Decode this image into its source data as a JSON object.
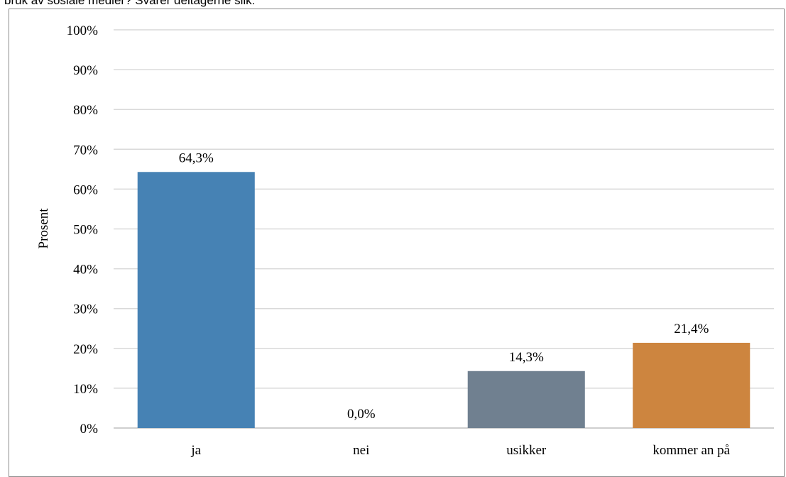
{
  "caption": "bruk av sosiale medier? Svarer deltagerne slik:",
  "chart_data": {
    "type": "bar",
    "categories": [
      "ja",
      "nei",
      "usikker",
      "kommer an på"
    ],
    "values": [
      64.3,
      0.0,
      14.3,
      21.4
    ],
    "value_labels": [
      "64,3%",
      "0,0%",
      "14,3%",
      "21,4%"
    ],
    "colors": [
      "#4682B4",
      "#4682B4",
      "#708090",
      "#CD853F"
    ],
    "ylabel": "Prosent",
    "ylim": [
      0,
      100
    ],
    "yticks": [
      "0%",
      "10%",
      "20%",
      "30%",
      "40%",
      "50%",
      "60%",
      "70%",
      "80%",
      "90%",
      "100%"
    ],
    "grid": true
  }
}
